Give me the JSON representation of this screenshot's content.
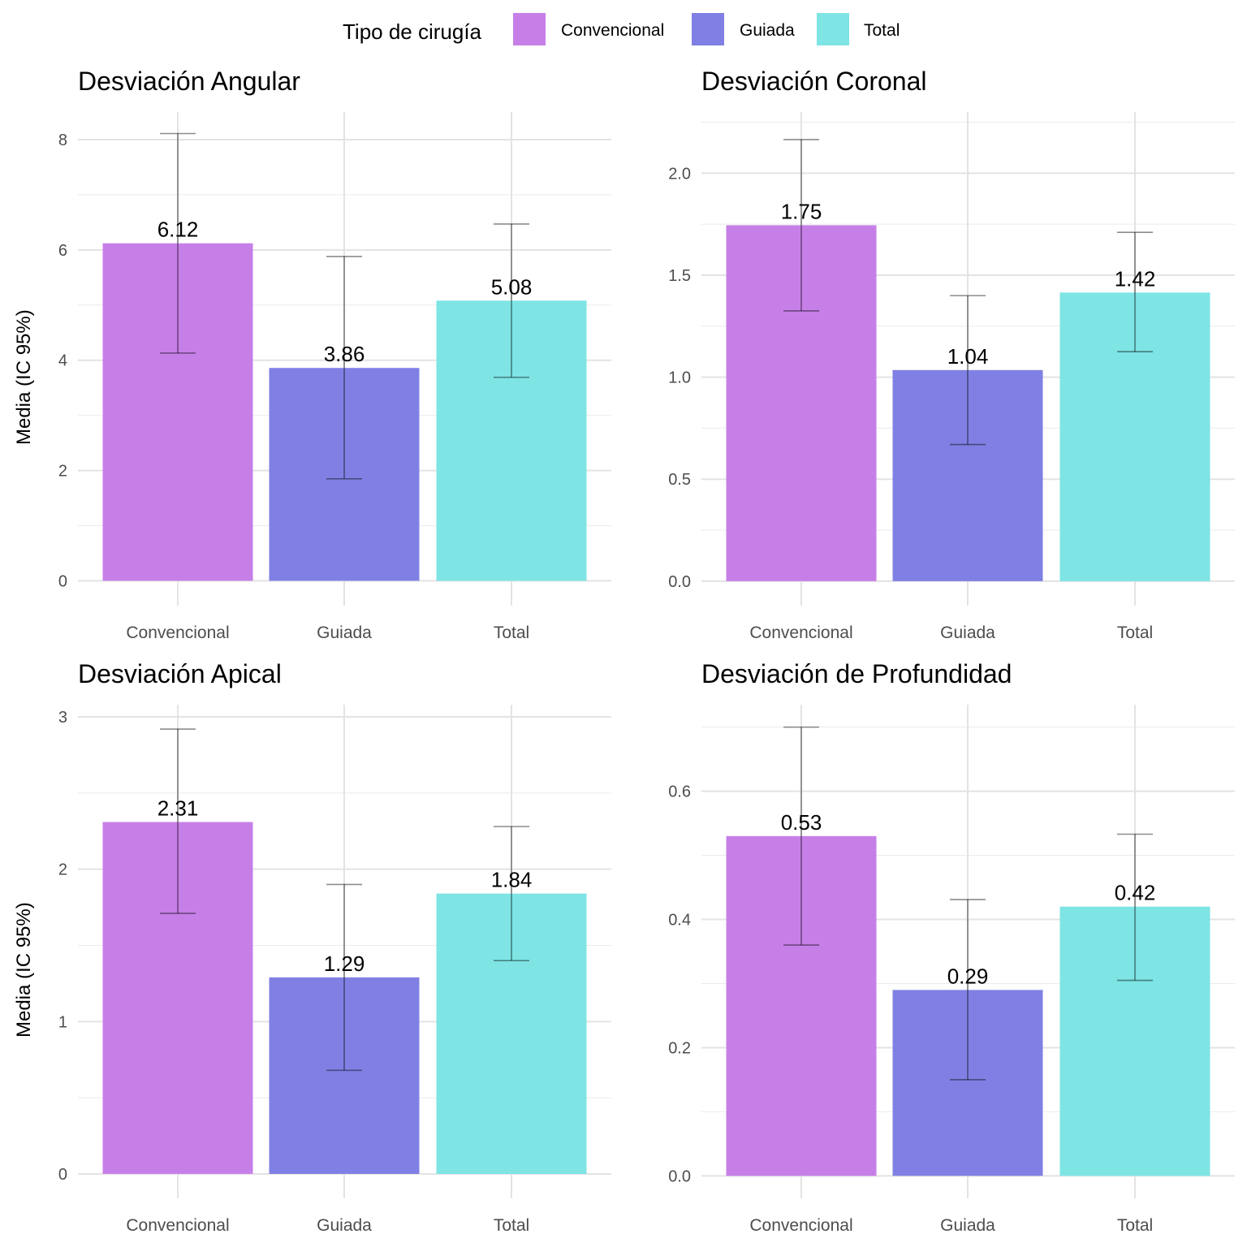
{
  "legend": {
    "title": "Tipo de cirugía",
    "items": [
      {
        "label": "Convencional",
        "color": "#C77FE8"
      },
      {
        "label": "Guiada",
        "color": "#8080E4"
      },
      {
        "label": "Total",
        "color": "#7EE4E4"
      }
    ]
  },
  "ylabel": "Media (IC 95%)",
  "chart_data": [
    {
      "type": "bar",
      "title": "Desviación Angular",
      "categories": [
        "Convencional",
        "Guiada",
        "Total"
      ],
      "values": [
        6.12,
        3.86,
        5.08
      ],
      "ci_lower": [
        4.13,
        1.85,
        3.69
      ],
      "ci_upper": [
        8.11,
        5.88,
        6.47
      ],
      "value_labels": [
        "6.12",
        "3.86",
        "5.08"
      ],
      "ylabel": "Media (IC 95%)",
      "ylim": [
        -0.45,
        8.5
      ],
      "yticks": [
        0,
        2,
        4,
        6,
        8
      ],
      "ytick_labels": [
        "0",
        "2",
        "4",
        "6",
        "8"
      ],
      "grid": true
    },
    {
      "type": "bar",
      "title": "Desviación Coronal",
      "categories": [
        "Convencional",
        "Guiada",
        "Total"
      ],
      "values": [
        1.745,
        1.035,
        1.415
      ],
      "ci_lower": [
        1.325,
        0.67,
        1.125
      ],
      "ci_upper": [
        2.165,
        1.4,
        1.71
      ],
      "value_labels": [
        "1.75",
        "1.04",
        "1.42"
      ],
      "ylabel": "",
      "ylim": [
        -0.12,
        2.3
      ],
      "yticks": [
        0,
        0.5,
        1,
        1.5,
        2
      ],
      "ytick_labels": [
        "0.0",
        "0.5",
        "1.0",
        "1.5",
        "2.0"
      ],
      "grid": true
    },
    {
      "type": "bar",
      "title": "Desviación Apical",
      "categories": [
        "Convencional",
        "Guiada",
        "Total"
      ],
      "values": [
        2.31,
        1.29,
        1.84
      ],
      "ci_lower": [
        1.71,
        0.68,
        1.4
      ],
      "ci_upper": [
        2.92,
        1.9,
        2.28
      ],
      "value_labels": [
        "2.31",
        "1.29",
        "1.84"
      ],
      "ylabel": "Media (IC 95%)",
      "ylim": [
        -0.16,
        3.08
      ],
      "yticks": [
        0,
        1,
        2,
        3
      ],
      "ytick_labels": [
        "0",
        "1",
        "2",
        "3"
      ],
      "grid": true
    },
    {
      "type": "bar",
      "title": "Desviación de Profundidad",
      "categories": [
        "Convencional",
        "Guiada",
        "Total"
      ],
      "values": [
        0.53,
        0.29,
        0.42
      ],
      "ci_lower": [
        0.36,
        0.15,
        0.305
      ],
      "ci_upper": [
        0.7,
        0.431,
        0.533
      ],
      "value_labels": [
        "0.53",
        "0.29",
        "0.42"
      ],
      "ylabel": "",
      "ylim": [
        -0.035,
        0.735
      ],
      "yticks": [
        0,
        0.2,
        0.4,
        0.6
      ],
      "ytick_labels": [
        "0.0",
        "0.2",
        "0.4",
        "0.6"
      ],
      "grid": true
    }
  ]
}
